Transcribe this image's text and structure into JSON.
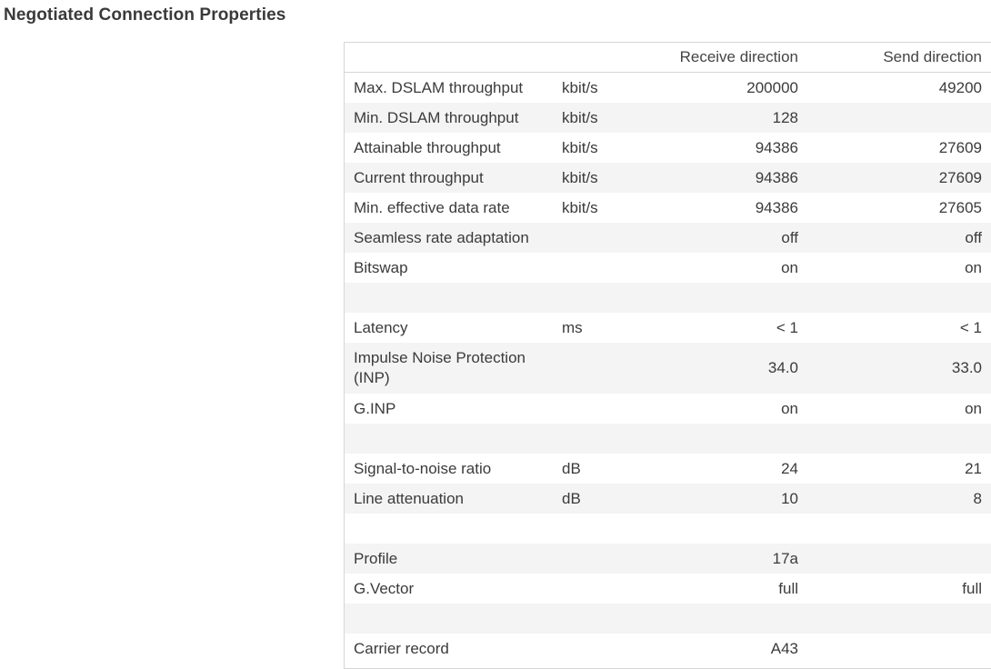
{
  "page": {
    "title": "Negotiated Connection Properties"
  },
  "table": {
    "headers": [
      "",
      "",
      "Receive direction",
      "Send direction"
    ],
    "rows": [
      {
        "label": "Max. DSLAM throughput",
        "unit": "kbit/s",
        "rx": "200000",
        "tx": "49200"
      },
      {
        "label": "Min. DSLAM throughput",
        "unit": "kbit/s",
        "rx": "128",
        "tx": ""
      },
      {
        "label": "Attainable throughput",
        "unit": "kbit/s",
        "rx": "94386",
        "tx": "27609"
      },
      {
        "label": "Current throughput",
        "unit": "kbit/s",
        "rx": "94386",
        "tx": "27609"
      },
      {
        "label": "Min. effective data rate",
        "unit": "kbit/s",
        "rx": "94386",
        "tx": "27605"
      },
      {
        "label": "Seamless rate adaptation",
        "unit": "",
        "rx": "off",
        "tx": "off"
      },
      {
        "label": "Bitswap",
        "unit": "",
        "rx": "on",
        "tx": "on"
      },
      {
        "label": "",
        "unit": "",
        "rx": "",
        "tx": ""
      },
      {
        "label": "Latency",
        "unit": "ms",
        "rx": "< 1",
        "tx": "< 1"
      },
      {
        "label": "Impulse Noise Protection (INP)",
        "unit": "",
        "rx": "34.0",
        "tx": "33.0"
      },
      {
        "label": "G.INP",
        "unit": "",
        "rx": "on",
        "tx": "on"
      },
      {
        "label": "",
        "unit": "",
        "rx": "",
        "tx": ""
      },
      {
        "label": "Signal-to-noise ratio",
        "unit": "dB",
        "rx": "24",
        "tx": "21"
      },
      {
        "label": "Line attenuation",
        "unit": "dB",
        "rx": "10",
        "tx": "8"
      },
      {
        "label": "",
        "unit": "",
        "rx": "",
        "tx": ""
      },
      {
        "label": "Profile",
        "unit": "",
        "rx": "17a",
        "tx": ""
      },
      {
        "label": "G.Vector",
        "unit": "",
        "rx": "full",
        "tx": "full"
      },
      {
        "label": "",
        "unit": "",
        "rx": "",
        "tx": ""
      },
      {
        "label": "Carrier record",
        "unit": "",
        "rx": "A43",
        "tx": ""
      }
    ]
  }
}
